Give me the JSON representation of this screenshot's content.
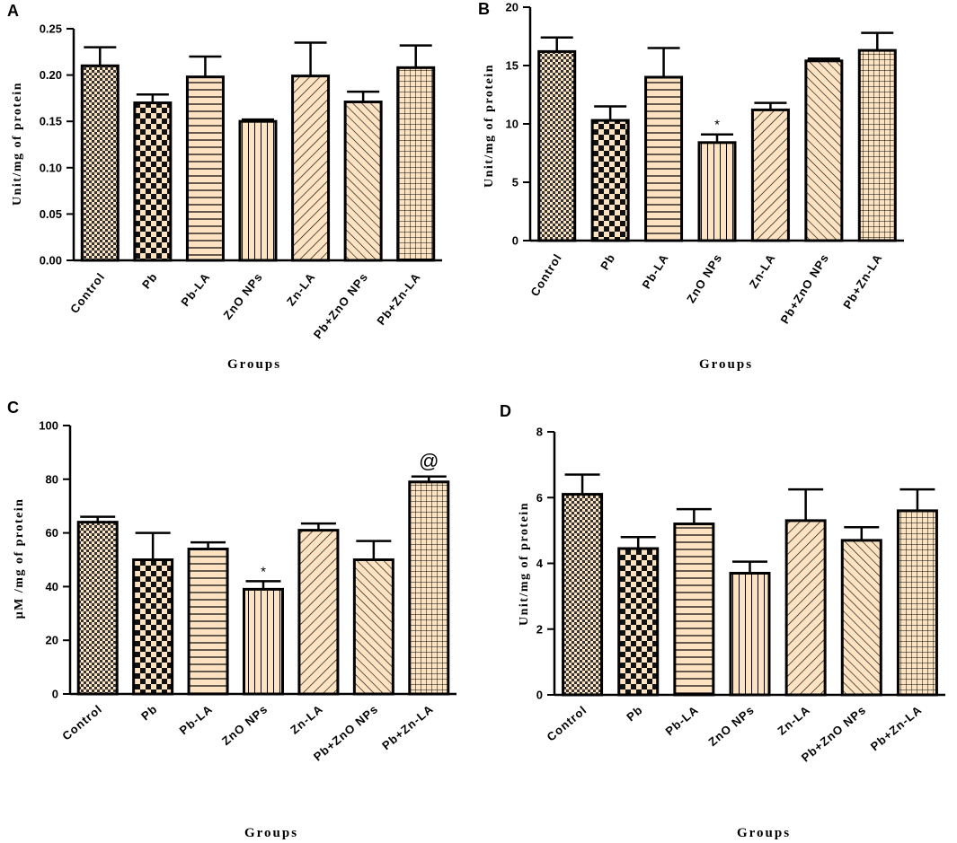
{
  "colors": {
    "bar_fill": "#fde3c2",
    "stroke": "#000000",
    "background": "#ffffff"
  },
  "chart_data": [
    {
      "id": "panel-a",
      "panel": "A",
      "type": "bar",
      "categories": [
        "Control",
        "Pb",
        "Pb-LA",
        "ZnO NPs",
        "Zn-LA",
        "Pb+ZnO NPs",
        "Pb+Zn-LA"
      ],
      "values": [
        0.21,
        0.17,
        0.198,
        0.15,
        0.199,
        0.171,
        0.208
      ],
      "errors": [
        0.02,
        0.009,
        0.022,
        0.002,
        0.036,
        0.011,
        0.024
      ],
      "patterns": [
        "checker",
        "bigchecker",
        "hlines",
        "vlines",
        "diag",
        "antidiag",
        "grid"
      ],
      "annotations": [
        "",
        "",
        "",
        "",
        "",
        "",
        ""
      ],
      "ylim": [
        0,
        0.25
      ],
      "yticks": [
        0,
        0.05,
        0.1,
        0.15,
        0.2,
        0.25
      ],
      "yticklabels": [
        "0.00",
        "0.05",
        "0.10",
        "0.15",
        "0.20",
        "0.25"
      ],
      "ylabel": "Unit/mg of protein",
      "xlabel": "Groups",
      "title": ""
    },
    {
      "id": "panel-b",
      "panel": "B",
      "type": "bar",
      "categories": [
        "Control",
        "Pb",
        "Pb-LA",
        "ZnO NPs",
        "Zn-LA",
        "Pb+ZnO NPs",
        "Pb+Zn-LA"
      ],
      "values": [
        16.2,
        10.3,
        14.0,
        8.4,
        11.2,
        15.4,
        16.3
      ],
      "errors": [
        1.2,
        1.2,
        2.5,
        0.7,
        0.6,
        0.2,
        1.5
      ],
      "patterns": [
        "checker",
        "bigchecker",
        "hlines",
        "vlines",
        "diag",
        "antidiag",
        "grid"
      ],
      "annotations": [
        "",
        "",
        "",
        "*",
        "",
        "",
        ""
      ],
      "ylim": [
        0,
        20
      ],
      "yticks": [
        0,
        5,
        10,
        15,
        20
      ],
      "yticklabels": [
        "0",
        "5",
        "10",
        "15",
        "20"
      ],
      "ylabel": "Unit/mg of protein",
      "xlabel": "Groups",
      "title": ""
    },
    {
      "id": "panel-c",
      "panel": "C",
      "type": "bar",
      "categories": [
        "Control",
        "Pb",
        "Pb-LA",
        "ZnO NPs",
        "Zn-LA",
        "Pb+ZnO NPs",
        "Pb+Zn-LA"
      ],
      "values": [
        64,
        50,
        54,
        39,
        61,
        50,
        79
      ],
      "errors": [
        2,
        10,
        2.5,
        3,
        2.5,
        7,
        2
      ],
      "patterns": [
        "checker",
        "bigchecker",
        "hlines",
        "vlines",
        "diag",
        "antidiag",
        "grid"
      ],
      "annotations": [
        "",
        "",
        "",
        "*",
        "",
        "",
        "@"
      ],
      "ylim": [
        0,
        100
      ],
      "yticks": [
        0,
        20,
        40,
        60,
        80,
        100
      ],
      "yticklabels": [
        "0",
        "20",
        "40",
        "60",
        "80",
        "100"
      ],
      "ylabel": "µM /mg of protein",
      "xlabel": "Groups",
      "title": ""
    },
    {
      "id": "panel-d",
      "panel": "D",
      "type": "bar",
      "categories": [
        "Control",
        "Pb",
        "Pb-LA",
        "ZnO NPs",
        "Zn-LA",
        "Pb+ZnO NPs",
        "Pb+Zn-LA"
      ],
      "values": [
        6.1,
        4.45,
        5.2,
        3.7,
        5.3,
        4.7,
        5.6
      ],
      "errors": [
        0.6,
        0.35,
        0.45,
        0.35,
        0.95,
        0.4,
        0.65
      ],
      "patterns": [
        "checker",
        "bigchecker",
        "hlines",
        "vlines",
        "diag",
        "antidiag",
        "grid"
      ],
      "annotations": [
        "",
        "",
        "",
        "",
        "",
        "",
        ""
      ],
      "ylim": [
        0,
        8
      ],
      "yticks": [
        0,
        2,
        4,
        6,
        8
      ],
      "yticklabels": [
        "0",
        "2",
        "4",
        "6",
        "8"
      ],
      "ylabel": "Unit/mg of protein",
      "xlabel": "Groups",
      "title": ""
    }
  ]
}
